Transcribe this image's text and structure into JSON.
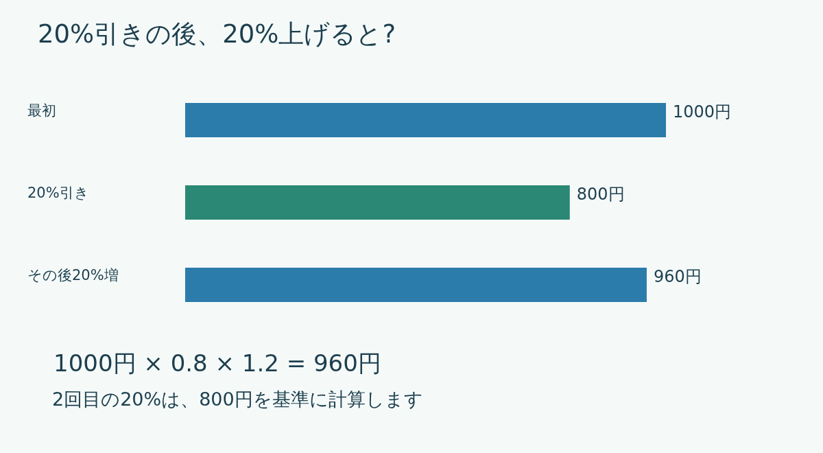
{
  "chart_data": {
    "type": "bar",
    "orientation": "horizontal",
    "title": "20%引きの後、20%上げると?",
    "categories": [
      "最初",
      "20%引き",
      "その後20%増"
    ],
    "values": [
      1000,
      800,
      960
    ],
    "colors": [
      "#2b7caa",
      "#2a8874",
      "#2b7caa"
    ],
    "value_labels": [
      "1000円",
      "800円",
      "960円"
    ],
    "xlim": [
      0,
      1000
    ],
    "tick_labels": "y",
    "annotations": [
      "1000円 × 0.8 × 1.2 = 960円",
      "2回目の20%は、800円を基準に計算します"
    ]
  }
}
